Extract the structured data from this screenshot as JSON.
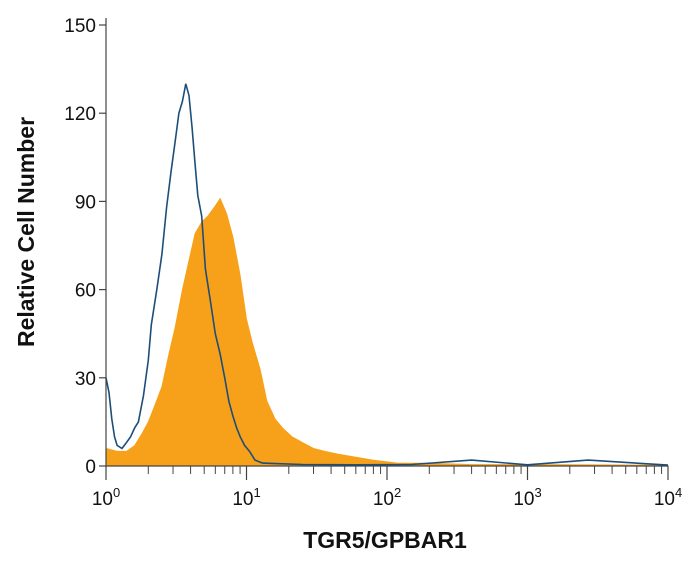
{
  "chart_data": {
    "type": "histogram",
    "x_scale": "log",
    "xlim": [
      1,
      10000
    ],
    "ylim": [
      0,
      150
    ],
    "xlabel": "TGR5/GPBAR1",
    "ylabel": "Relative Cell Number",
    "x_ticks": [
      {
        "value": 1,
        "base": "10",
        "exp": "0"
      },
      {
        "value": 10,
        "base": "10",
        "exp": "1"
      },
      {
        "value": 100,
        "base": "10",
        "exp": "2"
      },
      {
        "value": 1000,
        "base": "10",
        "exp": "3"
      },
      {
        "value": 10000,
        "base": "10",
        "exp": "4"
      }
    ],
    "y_ticks": [
      "0",
      "30",
      "60",
      "90",
      "120",
      "150"
    ],
    "grid": false,
    "legend": "none",
    "series": [
      {
        "style": "filled",
        "color": "#f7a11a",
        "points": [
          [
            1.0,
            6
          ],
          [
            1.2,
            5
          ],
          [
            1.4,
            5
          ],
          [
            1.6,
            7
          ],
          [
            1.8,
            11
          ],
          [
            2.0,
            15
          ],
          [
            2.2,
            20
          ],
          [
            2.5,
            27
          ],
          [
            2.8,
            38
          ],
          [
            3.1,
            47
          ],
          [
            3.5,
            60
          ],
          [
            3.9,
            70
          ],
          [
            4.3,
            79
          ],
          [
            4.8,
            83
          ],
          [
            5.3,
            85
          ],
          [
            5.9,
            88
          ],
          [
            6.5,
            91
          ],
          [
            7.2,
            86
          ],
          [
            8.0,
            78
          ],
          [
            9.0,
            65
          ],
          [
            10.0,
            50
          ],
          [
            11.0,
            42
          ],
          [
            12.5,
            33
          ],
          [
            14.0,
            22
          ],
          [
            16.0,
            16
          ],
          [
            18.0,
            13
          ],
          [
            21.0,
            10
          ],
          [
            25.0,
            8
          ],
          [
            30.0,
            6
          ],
          [
            36.0,
            5
          ],
          [
            45.0,
            4
          ],
          [
            60.0,
            3
          ],
          [
            80.0,
            2
          ],
          [
            120.0,
            1
          ],
          [
            200.0,
            1
          ],
          [
            400.0,
            0.5
          ],
          [
            1000.0,
            0.5
          ],
          [
            3000.0,
            0.4
          ],
          [
            10000.0,
            0.3
          ]
        ]
      },
      {
        "style": "outline",
        "color": "#1d4e7a",
        "points": [
          [
            1.0,
            30
          ],
          [
            1.05,
            25
          ],
          [
            1.1,
            16
          ],
          [
            1.15,
            10
          ],
          [
            1.2,
            7
          ],
          [
            1.3,
            6
          ],
          [
            1.4,
            8
          ],
          [
            1.5,
            10
          ],
          [
            1.6,
            13
          ],
          [
            1.7,
            15
          ],
          [
            1.85,
            24
          ],
          [
            2.0,
            36
          ],
          [
            2.1,
            48
          ],
          [
            2.3,
            60
          ],
          [
            2.5,
            72
          ],
          [
            2.7,
            88
          ],
          [
            2.9,
            100
          ],
          [
            3.1,
            110
          ],
          [
            3.3,
            120
          ],
          [
            3.5,
            124
          ],
          [
            3.7,
            130
          ],
          [
            3.9,
            126
          ],
          [
            4.1,
            115
          ],
          [
            4.3,
            103
          ],
          [
            4.5,
            92
          ],
          [
            4.8,
            85
          ],
          [
            5.1,
            67
          ],
          [
            5.5,
            57
          ],
          [
            6.0,
            45
          ],
          [
            6.5,
            38
          ],
          [
            7.0,
            30
          ],
          [
            7.5,
            22
          ],
          [
            8.0,
            17
          ],
          [
            8.5,
            13
          ],
          [
            9.0,
            10
          ],
          [
            9.7,
            7
          ],
          [
            10.5,
            5
          ],
          [
            11.5,
            2
          ],
          [
            13.0,
            1
          ],
          [
            16.0,
            0.8
          ],
          [
            25.0,
            0.5
          ],
          [
            60.0,
            0.4
          ],
          [
            150.0,
            0.5
          ],
          [
            400.0,
            2
          ],
          [
            1000.0,
            0.4
          ],
          [
            2700.0,
            2
          ],
          [
            10000.0,
            0.3
          ]
        ]
      }
    ]
  }
}
